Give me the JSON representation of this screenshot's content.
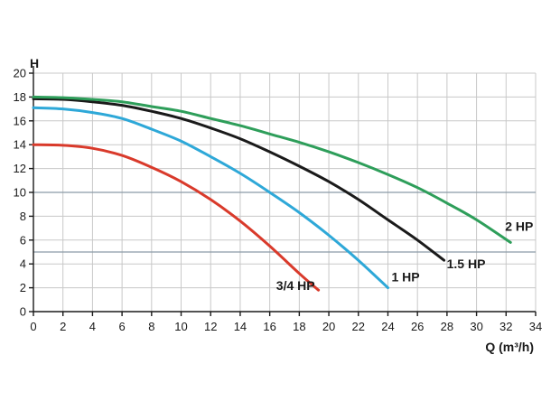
{
  "chart_data": {
    "type": "line",
    "xlabel": "Q (m³/h)",
    "ylabel": "H",
    "xlim": [
      0,
      34
    ],
    "ylim": [
      0,
      20
    ],
    "x_ticks": [
      0,
      2,
      4,
      6,
      8,
      10,
      12,
      14,
      16,
      18,
      20,
      22,
      24,
      26,
      28,
      30,
      32,
      34
    ],
    "y_ticks": [
      0,
      2,
      4,
      6,
      8,
      10,
      12,
      14,
      16,
      18,
      20
    ],
    "emphasized_gridlines_y": [
      5,
      10
    ],
    "grid": true,
    "legend": "inline labels at curve ends",
    "series": [
      {
        "name": "3/4 HP",
        "color": "#d93a2b",
        "x": [
          0,
          2,
          4,
          6,
          8,
          10,
          12,
          14,
          16,
          18,
          19.3
        ],
        "y": [
          14.0,
          13.95,
          13.7,
          13.1,
          12.1,
          10.9,
          9.4,
          7.6,
          5.5,
          3.2,
          1.8
        ]
      },
      {
        "name": "1 HP",
        "color": "#2ea8d8",
        "x": [
          0,
          2,
          4,
          6,
          8,
          10,
          12,
          14,
          16,
          18,
          20,
          22,
          24
        ],
        "y": [
          17.1,
          17.0,
          16.7,
          16.2,
          15.3,
          14.3,
          13.0,
          11.6,
          10.0,
          8.3,
          6.4,
          4.3,
          2.0
        ]
      },
      {
        "name": "1.5 HP",
        "color": "#1a1a1a",
        "x": [
          0,
          2,
          4,
          6,
          8,
          10,
          12,
          14,
          16,
          18,
          20,
          22,
          24,
          26,
          27.8
        ],
        "y": [
          17.85,
          17.8,
          17.6,
          17.3,
          16.8,
          16.2,
          15.4,
          14.5,
          13.4,
          12.2,
          10.9,
          9.4,
          7.7,
          6.0,
          4.3
        ]
      },
      {
        "name": "2 HP",
        "color": "#2e9e5a",
        "x": [
          0,
          2,
          4,
          6,
          8,
          10,
          12,
          14,
          16,
          18,
          20,
          22,
          24,
          26,
          28,
          30,
          32.3
        ],
        "y": [
          18.0,
          17.95,
          17.8,
          17.6,
          17.2,
          16.8,
          16.2,
          15.6,
          14.9,
          14.2,
          13.4,
          12.5,
          11.5,
          10.4,
          9.1,
          7.7,
          5.8
        ]
      }
    ]
  }
}
